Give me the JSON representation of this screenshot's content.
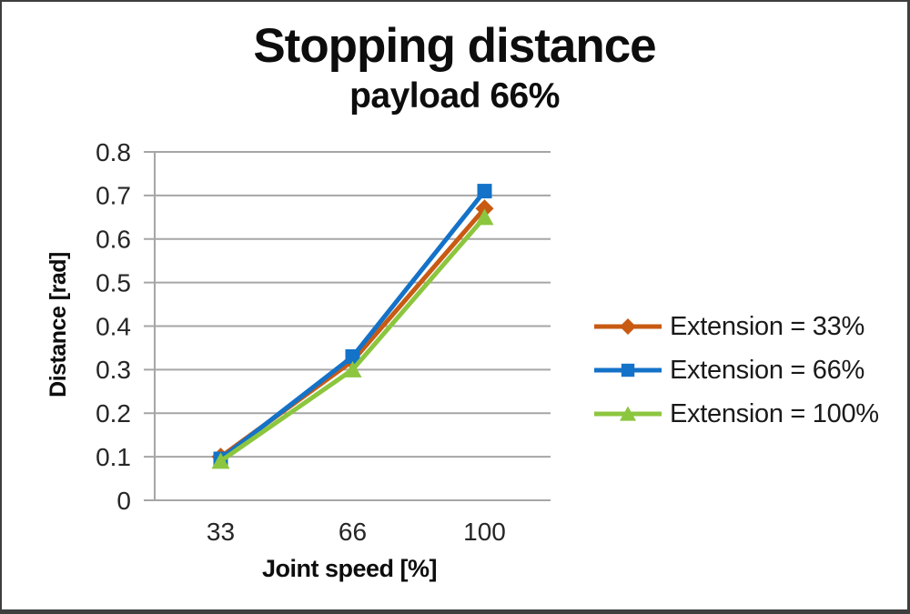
{
  "chart_data": {
    "type": "line",
    "title": "Stopping distance",
    "subtitle": "payload 66%",
    "xlabel": "Joint speed [%]",
    "ylabel": "Distance [rad]",
    "categories": [
      "33",
      "66",
      "100"
    ],
    "series": [
      {
        "name": "Extension = 33%",
        "color": "#C85A13",
        "marker": "diamond",
        "values": [
          0.1,
          0.32,
          0.67
        ]
      },
      {
        "name": "Extension = 66%",
        "color": "#1472C8",
        "marker": "square",
        "values": [
          0.095,
          0.33,
          0.71
        ]
      },
      {
        "name": "Extension = 100%",
        "color": "#8CC63F",
        "marker": "triangle",
        "values": [
          0.09,
          0.3,
          0.65
        ]
      }
    ],
    "ylim": [
      0,
      0.8
    ],
    "yticks": [
      "0",
      "0.1",
      "0.2",
      "0.3",
      "0.4",
      "0.5",
      "0.6",
      "0.7",
      "0.8"
    ],
    "grid": true,
    "legend_position": "right",
    "grid_color": "#A6A6A6",
    "text_color": "#262626"
  }
}
